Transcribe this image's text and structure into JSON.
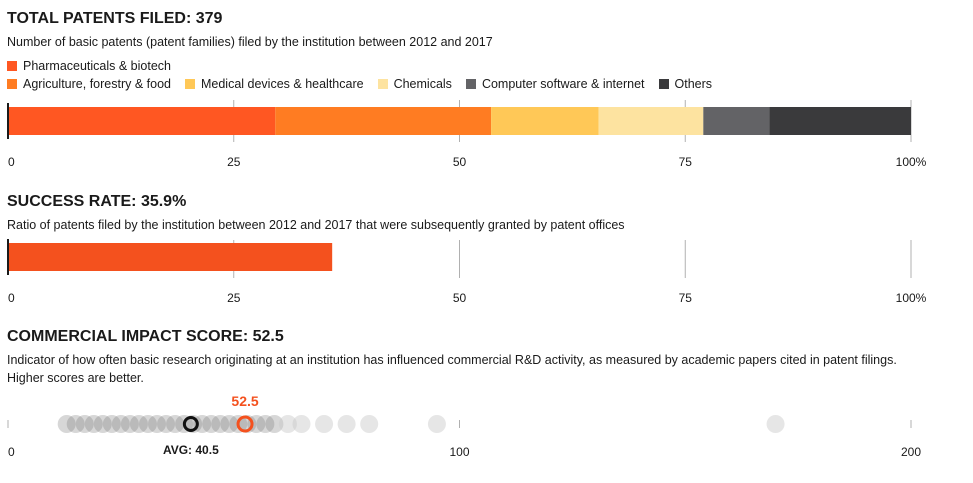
{
  "colors": {
    "pharma": "#ff5722",
    "agri": "#ff7c22",
    "medical": "#ffc857",
    "chemicals": "#fde3a0",
    "software": "#636366",
    "others": "#3a3a3c",
    "accent": "#f4511e",
    "axis": "#b0b0b0",
    "dot": "#bdbdbd"
  },
  "patents": {
    "title": "TOTAL PATENTS FILED: 379",
    "description": "Number of basic patents (patent families) filed by the institution between 2012 and 2017"
  },
  "success": {
    "title": "SUCCESS RATE: 35.9%",
    "description": "Ratio of patents filed by the institution between 2012 and 2017 that were subsequently granted by patent offices"
  },
  "impact": {
    "title": "COMMERCIAL IMPACT SCORE: 52.5",
    "description": "Indicator of how often basic research originating at an institution has influenced commercial R&D activity, as measured by academic papers cited in patent filings. Higher scores are better."
  },
  "chart_data": [
    {
      "type": "bar",
      "orientation": "horizontal-stacked-100",
      "series": [
        {
          "name": "Pharmaceuticals & biotech",
          "values": [
            29.6
          ],
          "color": "#ff5722"
        },
        {
          "name": "Agriculture, forestry & food",
          "values": [
            23.9
          ],
          "color": "#ff7c22"
        },
        {
          "name": "Medical devices & healthcare",
          "values": [
            11.9
          ],
          "color": "#ffc857"
        },
        {
          "name": "Chemicals",
          "values": [
            11.6
          ],
          "color": "#fde3a0"
        },
        {
          "name": "Computer software & internet",
          "values": [
            7.3
          ],
          "color": "#636366"
        },
        {
          "name": "Others",
          "values": [
            15.7
          ],
          "color": "#3a3a3c"
        }
      ],
      "xlim": [
        0,
        100
      ],
      "ticks": [
        "0",
        "25",
        "50",
        "75",
        "100%"
      ],
      "legend_position": "top"
    },
    {
      "type": "bar",
      "orientation": "horizontal",
      "values": [
        35.9
      ],
      "xlim": [
        0,
        100
      ],
      "ticks": [
        "0",
        "25",
        "50",
        "75",
        "100%"
      ]
    },
    {
      "type": "scatter",
      "orientation": "strip",
      "x": [
        13,
        15,
        17,
        19,
        21,
        23,
        25,
        27,
        29,
        31,
        33,
        35,
        37,
        39,
        41,
        43,
        45,
        47,
        49,
        51,
        53,
        55,
        57,
        59,
        62,
        65,
        70,
        75,
        80,
        95,
        170
      ],
      "highlight": {
        "label": "52.5",
        "value": 52.5
      },
      "average": {
        "label": "AVG: 40.5",
        "value": 40.5
      },
      "xlim": [
        0,
        200
      ],
      "ticks": [
        "0",
        "100",
        "200"
      ]
    }
  ]
}
